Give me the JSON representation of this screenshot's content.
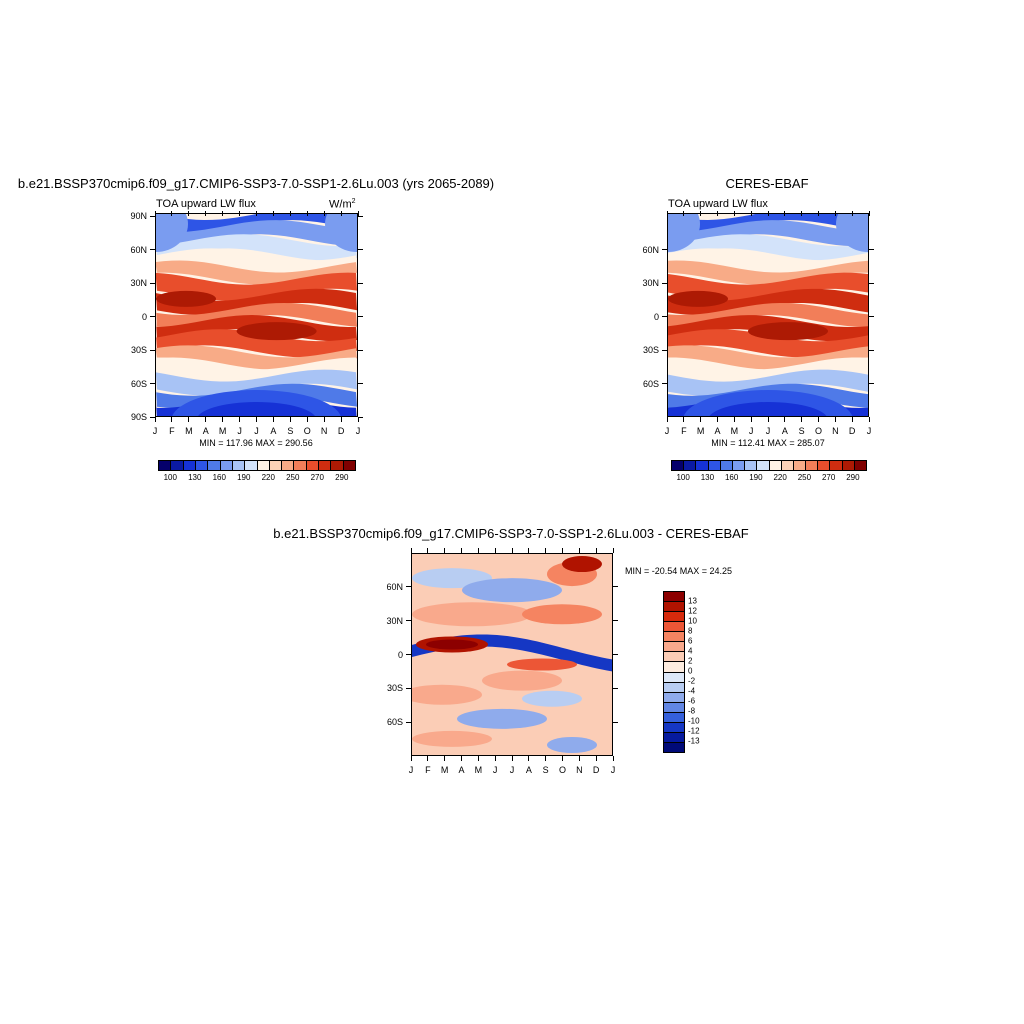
{
  "chart_data": [
    {
      "type": "heatmap",
      "title": "b.e21.BSSP370cmip6.f09_g17.CMIP6-SSP3-7.0-SSP1-2.6Lu.003 (yrs 2065-2089)",
      "subtitle": "TOA upward LW flux",
      "units_base": "W/m",
      "units_exp": "2",
      "minmax": "MIN = 117.96 MAX = 290.56",
      "x_ticks": [
        "J",
        "F",
        "M",
        "A",
        "M",
        "J",
        "J",
        "A",
        "S",
        "O",
        "N",
        "D",
        "J"
      ],
      "y_ticks": [
        "90N",
        "60N",
        "30N",
        "0",
        "30S",
        "60S",
        "90S"
      ],
      "y_tick_values": [
        90,
        60,
        30,
        0,
        -30,
        -60,
        -90
      ],
      "ylim": [
        -90,
        90
      ],
      "cb_labels": [
        "100",
        "130",
        "160",
        "190",
        "220",
        "250",
        "270",
        "290"
      ],
      "cb_colors": [
        "#05006b",
        "#0b1aa3",
        "#1632d6",
        "#2e55e6",
        "#4f7ae8",
        "#7a9cf0",
        "#a8c3f5",
        "#d3e3fa",
        "#fff3e6",
        "#fcd2b7",
        "#f8ab87",
        "#f27e59",
        "#e84e2c",
        "#cf2d10",
        "#ad1a04",
        "#800000"
      ]
    },
    {
      "type": "heatmap",
      "title": "CERES-EBAF",
      "subtitle": "TOA upward LW flux",
      "minmax": "MIN = 112.41 MAX = 285.07",
      "x_ticks": [
        "J",
        "F",
        "M",
        "A",
        "M",
        "J",
        "J",
        "A",
        "S",
        "O",
        "N",
        "D",
        "J"
      ],
      "y_ticks": [
        "60N",
        "30N",
        "0",
        "30S",
        "60S"
      ],
      "y_tick_values": [
        60,
        30,
        0,
        -30,
        -60
      ],
      "ylim": [
        -90,
        90
      ],
      "cb_labels": [
        "100",
        "130",
        "160",
        "190",
        "220",
        "250",
        "270",
        "290"
      ],
      "cb_colors": [
        "#05006b",
        "#0b1aa3",
        "#1632d6",
        "#2e55e6",
        "#4f7ae8",
        "#7a9cf0",
        "#a8c3f5",
        "#d3e3fa",
        "#fff3e6",
        "#fcd2b7",
        "#f8ab87",
        "#f27e59",
        "#e84e2c",
        "#cf2d10",
        "#ad1a04",
        "#800000"
      ]
    },
    {
      "type": "heatmap",
      "title": "b.e21.BSSP370cmip6.f09_g17.CMIP6-SSP3-7.0-SSP1-2.6Lu.003 - CERES-EBAF",
      "minmax": "MIN = -20.54 MAX =  24.25",
      "x_ticks": [
        "J",
        "F",
        "M",
        "A",
        "M",
        "J",
        "J",
        "A",
        "S",
        "O",
        "N",
        "D",
        "J"
      ],
      "y_ticks": [
        "60N",
        "30N",
        "0",
        "30S",
        "60S"
      ],
      "y_tick_values": [
        60,
        30,
        0,
        -30,
        -60
      ],
      "ylim": [
        -90,
        90
      ],
      "cb_labels": [
        "13",
        "12",
        "10",
        "8",
        "6",
        "4",
        "2",
        "0",
        "-2",
        "-4",
        "-6",
        "-8",
        "-10",
        "-12",
        "-13"
      ],
      "cb_colors": [
        "#8c0000",
        "#b01300",
        "#d62a0c",
        "#ec5636",
        "#f58461",
        "#f9a98c",
        "#fbcdb6",
        "#fdecdf",
        "#dde8f8",
        "#b8cdf2",
        "#8fabec",
        "#6186e4",
        "#3560dc",
        "#1537c4",
        "#061a9e",
        "#000a78"
      ]
    }
  ]
}
